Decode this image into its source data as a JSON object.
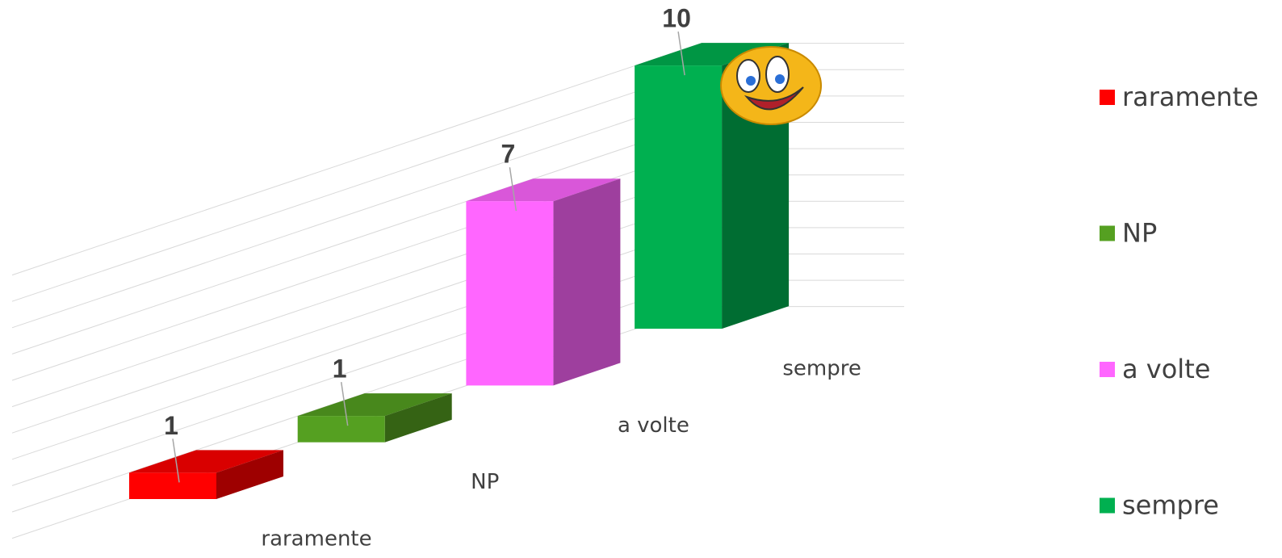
{
  "chart_data": {
    "type": "bar3d",
    "categories": [
      "raramente",
      "NP",
      "a volte",
      "sempre"
    ],
    "series": [
      {
        "name": "raramente",
        "color": "#ff0000",
        "values": [
          1,
          null,
          null,
          null
        ]
      },
      {
        "name": "NP",
        "color": "#55a021",
        "values": [
          null,
          1,
          null,
          null
        ]
      },
      {
        "name": "a volte",
        "color": "#ff66ff",
        "values": [
          null,
          null,
          7,
          null
        ]
      },
      {
        "name": "sempre",
        "color": "#00b050",
        "values": [
          null,
          null,
          null,
          10
        ]
      }
    ],
    "ylim": [
      0,
      10
    ],
    "yticks": [
      0,
      1,
      2,
      3,
      4,
      5,
      6,
      7,
      8,
      9,
      10
    ],
    "grid": true,
    "legend": "right"
  }
}
